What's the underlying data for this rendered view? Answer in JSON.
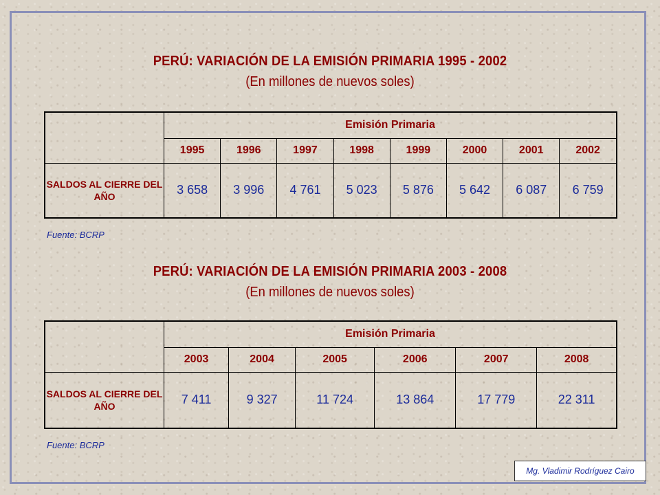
{
  "section1": {
    "title": "PERÚ: VARIACIÓN DE LA EMISIÓN PRIMARIA 1995 - 2002",
    "subtitle": "(En millones de nuevos soles)",
    "group_header": "Emisión Primaria",
    "row_label": "SALDOS AL CIERRE DEL AÑO",
    "years": [
      "1995",
      "1996",
      "1997",
      "1998",
      "1999",
      "2000",
      "2001",
      "2002"
    ],
    "values": [
      "3 658",
      "3 996",
      "4 761",
      "5 023",
      "5 876",
      "5 642",
      "6 087",
      "6 759"
    ],
    "source": "Fuente: BCRP"
  },
  "section2": {
    "title": "PERÚ: VARIACIÓN DE LA EMISIÓN PRIMARIA 2003 - 2008",
    "subtitle": "(En millones de nuevos soles)",
    "group_header": "Emisión Primaria",
    "row_label": "SALDOS AL CIERRE DEL AÑO",
    "years": [
      "2003",
      "2004",
      "2005",
      "2006",
      "2007",
      "2008"
    ],
    "values": [
      "7 411",
      "9 327",
      "11 724",
      "13 864",
      "17 779",
      "22 311"
    ],
    "source": "Fuente: BCRP"
  },
  "author": "Mg. Vladimir Rodríguez Cairo"
}
